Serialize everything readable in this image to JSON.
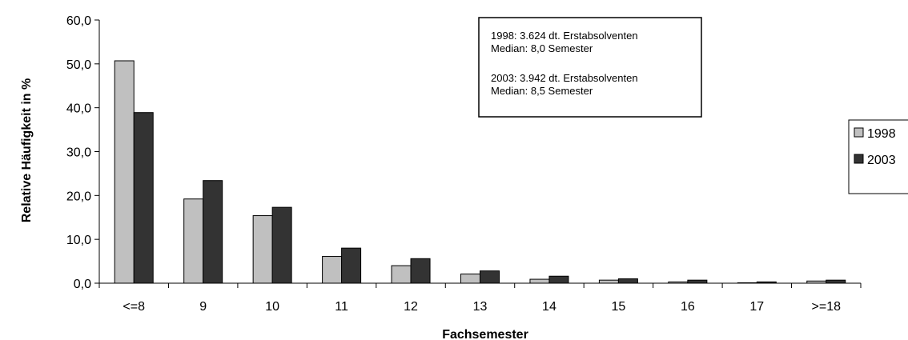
{
  "chart_data": {
    "type": "bar",
    "categories": [
      "<=8",
      "9",
      "10",
      "11",
      "12",
      "13",
      "14",
      "15",
      "16",
      "17",
      ">=18"
    ],
    "series": [
      {
        "name": "1998",
        "values": [
          50.7,
          19.2,
          15.4,
          6.1,
          4.0,
          2.1,
          0.9,
          0.7,
          0.3,
          0.1,
          0.5
        ],
        "color": "#c0c0c0"
      },
      {
        "name": "2003",
        "values": [
          38.9,
          23.4,
          17.3,
          8.0,
          5.6,
          2.8,
          1.6,
          1.0,
          0.7,
          0.3,
          0.7
        ],
        "color": "#333333"
      }
    ],
    "xlabel": "Fachsemester",
    "ylabel": "Relative Häufigkeit in %",
    "ylim": [
      0,
      60
    ],
    "yticks": [
      "0,0",
      "10,0",
      "20,0",
      "30,0",
      "40,0",
      "50,0",
      "60,0"
    ],
    "grid": false,
    "legend_position": "right",
    "annotation": {
      "lines": [
        "1998: 3.624 dt. Erstabsolventen",
        "Median: 8,0 Semester",
        "",
        "2003: 3.942 dt. Erstabsolventen",
        "Median: 8,5 Semester"
      ]
    }
  }
}
